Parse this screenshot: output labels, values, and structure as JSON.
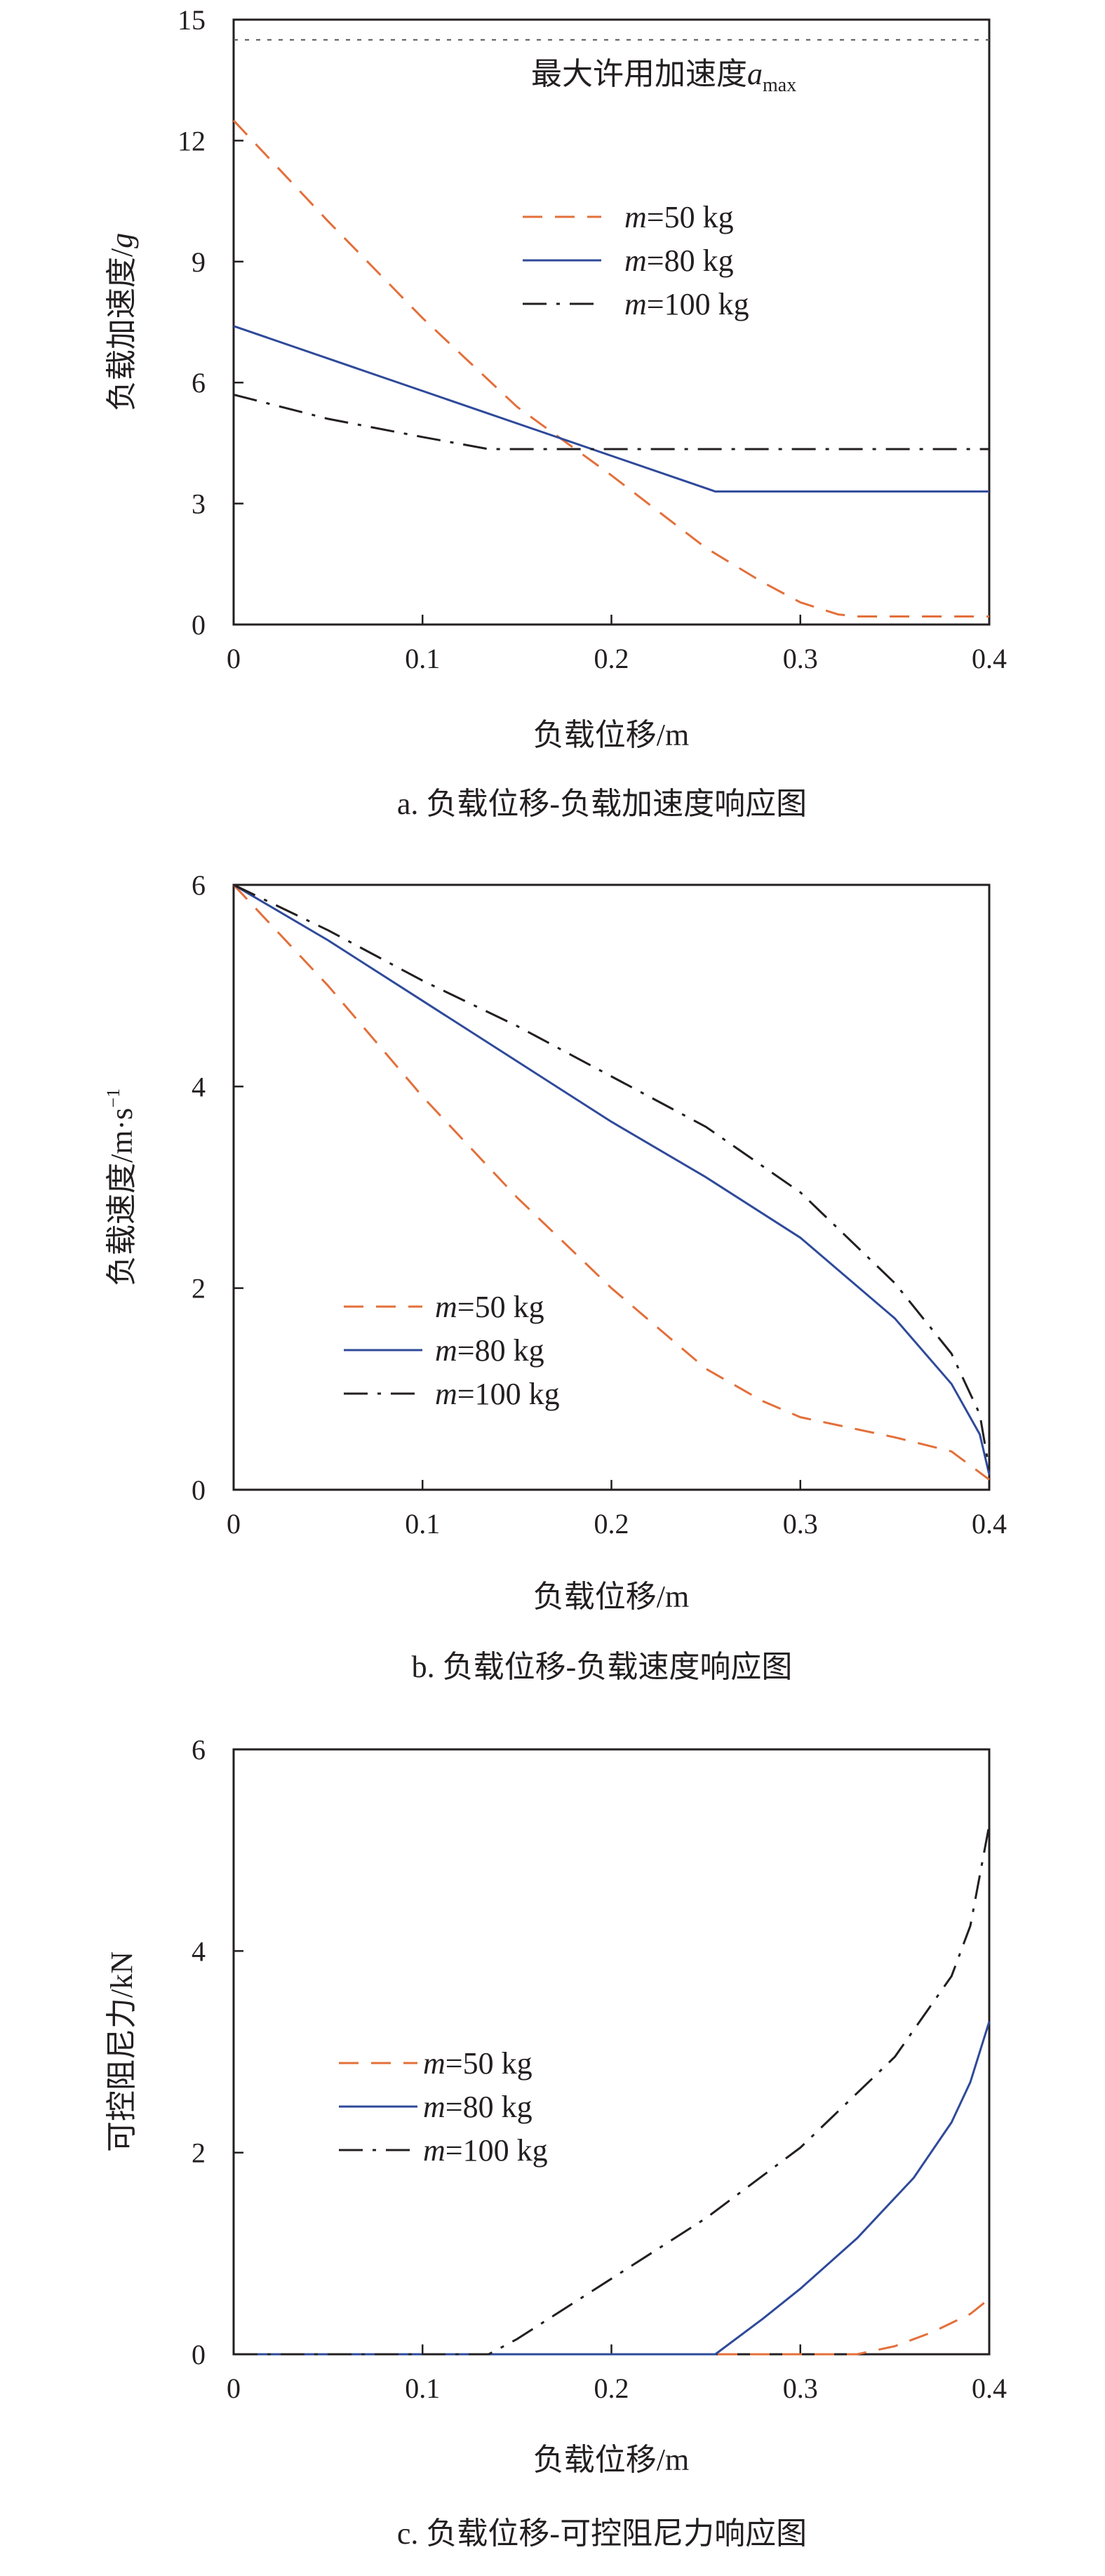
{
  "chart_data": [
    {
      "type": "line",
      "caption": "a. 负载位移-负载加速度响应图",
      "xlabel": "负载位移/m",
      "ylabel_main": "负载加速度/",
      "ylabel_unit": "g",
      "xlim": [
        0,
        0.4
      ],
      "ylim": [
        0,
        15
      ],
      "xticks": [
        "0",
        "0.1",
        "0.2",
        "0.3",
        "0.4"
      ],
      "yticks": [
        "0",
        "3",
        "6",
        "9",
        "12",
        "15"
      ],
      "legend": {
        "placement": "upper-middle"
      },
      "annotation": {
        "text": "最大许用加速度",
        "symbol": "a",
        "subscript": "max",
        "y": 14.5
      },
      "series": [
        {
          "name": "m=50 kg",
          "mass_symbol": "m",
          "mass_value": "=50 kg",
          "color": "#e36f3a",
          "style": "dashed",
          "x": [
            0,
            0.05,
            0.1,
            0.15,
            0.2,
            0.25,
            0.28,
            0.3,
            0.32,
            0.33,
            0.4
          ],
          "y": [
            12.5,
            10.0,
            7.6,
            5.4,
            3.7,
            1.9,
            1.05,
            0.55,
            0.25,
            0.2,
            0.2
          ]
        },
        {
          "name": "m=80 kg",
          "mass_symbol": "m",
          "mass_value": "=80 kg",
          "color": "#2f4a9a",
          "style": "solid",
          "x": [
            0,
            0.255,
            0.4
          ],
          "y": [
            7.4,
            3.3,
            3.3
          ]
        },
        {
          "name": "m=100 kg",
          "mass_symbol": "m",
          "mass_value": "=100 kg",
          "color": "#231f20",
          "style": "dashdot",
          "x": [
            0,
            0.05,
            0.1,
            0.135,
            0.4
          ],
          "y": [
            5.7,
            5.1,
            4.65,
            4.35,
            4.35
          ]
        }
      ]
    },
    {
      "type": "line",
      "caption": "b. 负载位移-负载速度响应图",
      "xlabel": "负载位移/m",
      "ylabel_main": "负载速度/m·s",
      "ylabel_sup": "−1",
      "xlim": [
        0,
        0.4
      ],
      "ylim": [
        0,
        6
      ],
      "xticks": [
        "0",
        "0.1",
        "0.2",
        "0.3",
        "0.4"
      ],
      "yticks": [
        "0",
        "2",
        "4",
        "6"
      ],
      "legend": {
        "placement": "lower-left"
      },
      "series": [
        {
          "name": "m=50 kg",
          "mass_symbol": "m",
          "mass_value": "=50 kg",
          "color": "#e36f3a",
          "style": "dashed",
          "x": [
            0,
            0.05,
            0.1,
            0.15,
            0.2,
            0.25,
            0.28,
            0.3,
            0.35,
            0.38,
            0.4
          ],
          "y": [
            6.0,
            5.0,
            3.9,
            2.9,
            2.0,
            1.2,
            0.88,
            0.72,
            0.52,
            0.38,
            0.1
          ]
        },
        {
          "name": "m=80 kg",
          "mass_symbol": "m",
          "mass_value": "=80 kg",
          "color": "#2f4a9a",
          "style": "solid",
          "x": [
            0,
            0.05,
            0.1,
            0.15,
            0.2,
            0.25,
            0.3,
            0.35,
            0.38,
            0.395,
            0.4
          ],
          "y": [
            6.0,
            5.45,
            4.85,
            4.25,
            3.65,
            3.1,
            2.5,
            1.7,
            1.05,
            0.55,
            0.15
          ]
        },
        {
          "name": "m=100 kg",
          "mass_symbol": "m",
          "mass_value": "=100 kg",
          "color": "#231f20",
          "style": "dashdot",
          "x": [
            0,
            0.05,
            0.1,
            0.15,
            0.2,
            0.25,
            0.3,
            0.35,
            0.38,
            0.395,
            0.4
          ],
          "y": [
            6.0,
            5.55,
            5.05,
            4.6,
            4.1,
            3.6,
            2.95,
            2.05,
            1.35,
            0.75,
            0.2
          ]
        }
      ]
    },
    {
      "type": "line",
      "caption": "c. 负载位移-可控阻尼力响应图",
      "xlabel": "负载位移/m",
      "ylabel_main": "可控阻尼力/kN",
      "xlim": [
        0,
        0.4
      ],
      "ylim": [
        0,
        6
      ],
      "xticks": [
        "0",
        "0.1",
        "0.2",
        "0.3",
        "0.4"
      ],
      "yticks": [
        "0",
        "2",
        "4",
        "6"
      ],
      "legend": {
        "placement": "middle-left"
      },
      "series": [
        {
          "name": "m=50 kg",
          "mass_symbol": "m",
          "mass_value": "=50 kg",
          "color": "#e36f3a",
          "style": "dashed",
          "x": [
            0,
            0.33,
            0.35,
            0.37,
            0.39,
            0.4
          ],
          "y": [
            0,
            0,
            0.08,
            0.22,
            0.4,
            0.55
          ]
        },
        {
          "name": "m=80 kg",
          "mass_symbol": "m",
          "mass_value": "=80 kg",
          "color": "#2f4a9a",
          "style": "solid",
          "x": [
            0,
            0.255,
            0.28,
            0.3,
            0.33,
            0.36,
            0.38,
            0.39,
            0.4
          ],
          "y": [
            0,
            0,
            0.35,
            0.65,
            1.15,
            1.75,
            2.3,
            2.7,
            3.3
          ]
        },
        {
          "name": "m=100 kg",
          "mass_symbol": "m",
          "mass_value": "=100 kg",
          "color": "#231f20",
          "style": "dashdot",
          "x": [
            0,
            0.135,
            0.15,
            0.2,
            0.25,
            0.3,
            0.35,
            0.38,
            0.39,
            0.4
          ],
          "y": [
            0,
            0,
            0.15,
            0.75,
            1.35,
            2.05,
            2.95,
            3.75,
            4.25,
            5.25
          ]
        }
      ]
    }
  ]
}
